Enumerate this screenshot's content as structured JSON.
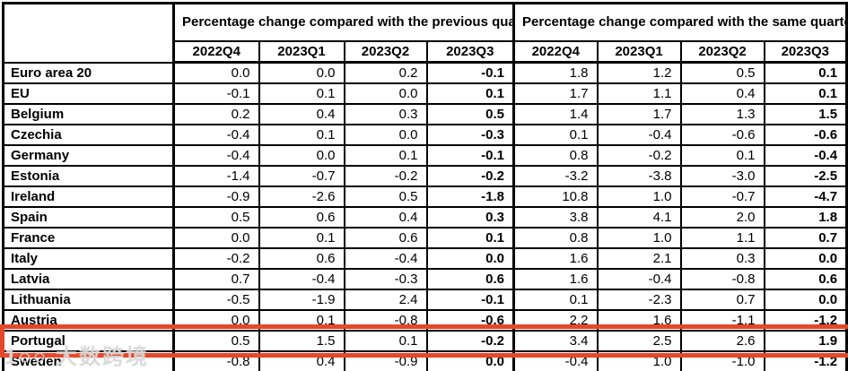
{
  "table": {
    "col_groups": [
      {
        "label": "Percentage change compared with the previous quarter",
        "quarters": [
          "2022Q4",
          "2023Q1",
          "2023Q2",
          "2023Q3"
        ]
      },
      {
        "label": "Percentage change compared with the same quarter of the previous year",
        "quarters": [
          "2022Q4",
          "2023Q1",
          "2023Q2",
          "2023Q3"
        ]
      }
    ],
    "rows": [
      {
        "label": "Euro area 20",
        "qoq": [
          "0.0",
          "0.0",
          "0.2",
          "-0.1"
        ],
        "yoy": [
          "1.8",
          "1.2",
          "0.5",
          "0.1"
        ]
      },
      {
        "label": "EU",
        "qoq": [
          "-0.1",
          "0.1",
          "0.0",
          "0.1"
        ],
        "yoy": [
          "1.7",
          "1.1",
          "0.4",
          "0.1"
        ]
      },
      {
        "label": "Belgium",
        "qoq": [
          "0.2",
          "0.4",
          "0.3",
          "0.5"
        ],
        "yoy": [
          "1.4",
          "1.7",
          "1.3",
          "1.5"
        ]
      },
      {
        "label": "Czechia",
        "qoq": [
          "-0.4",
          "0.1",
          "0.0",
          "-0.3"
        ],
        "yoy": [
          "0.1",
          "-0.4",
          "-0.6",
          "-0.6"
        ]
      },
      {
        "label": "Germany",
        "qoq": [
          "-0.4",
          "0.0",
          "0.1",
          "-0.1"
        ],
        "yoy": [
          "0.8",
          "-0.2",
          "0.1",
          "-0.4"
        ]
      },
      {
        "label": "Estonia",
        "qoq": [
          "-1.4",
          "-0.7",
          "-0.2",
          "-0.2"
        ],
        "yoy": [
          "-3.2",
          "-3.8",
          "-3.0",
          "-2.5"
        ]
      },
      {
        "label": "Ireland",
        "qoq": [
          "-0.9",
          "-2.6",
          "0.5",
          "-1.8"
        ],
        "yoy": [
          "10.8",
          "1.0",
          "-0.7",
          "-4.7"
        ]
      },
      {
        "label": "Spain",
        "qoq": [
          "0.5",
          "0.6",
          "0.4",
          "0.3"
        ],
        "yoy": [
          "3.8",
          "4.1",
          "2.0",
          "1.8"
        ]
      },
      {
        "label": "France",
        "qoq": [
          "0.0",
          "0.1",
          "0.6",
          "0.1"
        ],
        "yoy": [
          "0.8",
          "1.0",
          "1.1",
          "0.7"
        ]
      },
      {
        "label": "Italy",
        "qoq": [
          "-0.2",
          "0.6",
          "-0.4",
          "0.0"
        ],
        "yoy": [
          "1.6",
          "2.1",
          "0.3",
          "0.0"
        ]
      },
      {
        "label": "Latvia",
        "qoq": [
          "0.7",
          "-0.4",
          "-0.3",
          "0.6"
        ],
        "yoy": [
          "1.6",
          "-0.4",
          "-0.8",
          "0.6"
        ]
      },
      {
        "label": "Lithuania",
        "qoq": [
          "-0.5",
          "-1.9",
          "2.4",
          "-0.1"
        ],
        "yoy": [
          "0.1",
          "-2.3",
          "0.7",
          "0.0"
        ]
      },
      {
        "label": "Austria",
        "qoq": [
          "0.0",
          "0.1",
          "-0.8",
          "-0.6"
        ],
        "yoy": [
          "2.2",
          "1.6",
          "-1.1",
          "-1.2"
        ]
      },
      {
        "label": "Portugal",
        "qoq": [
          "0.5",
          "1.5",
          "0.1",
          "-0.2"
        ],
        "yoy": [
          "3.4",
          "2.5",
          "2.6",
          "1.9"
        ]
      },
      {
        "label": "Sweden",
        "qoq": [
          "-0.8",
          "0.4",
          "-0.9",
          "0.0"
        ],
        "yoy": [
          "-0.4",
          "1.0",
          "-1.0",
          "-1.2"
        ]
      }
    ],
    "bold_quarter_index": 3,
    "highlighted_row": "Portugal"
  },
  "annotations": {
    "watermark_text": "1○○ 大数跨境"
  },
  "colors": {
    "table_border": "#000000",
    "highlight_box_border": "#e5472a",
    "watermark": "#d3d3d3",
    "background": "#ffffff",
    "text": "#000000"
  }
}
